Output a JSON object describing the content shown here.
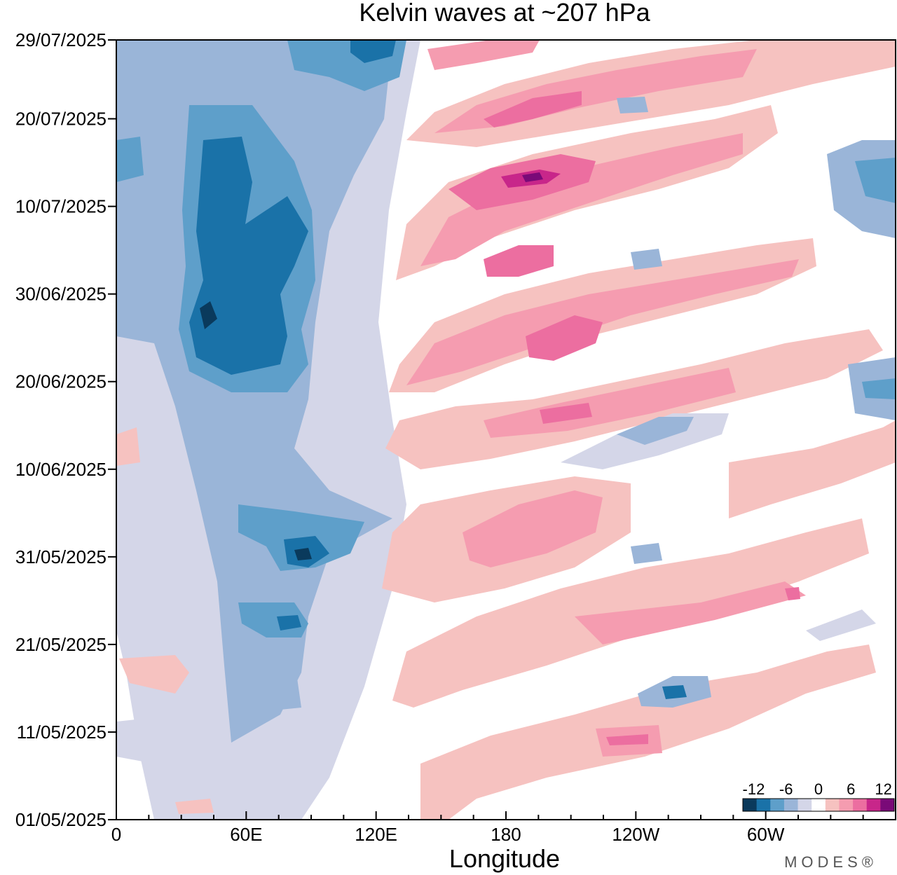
{
  "chart_data": {
    "type": "heatmap",
    "title": "Kelvin waves at ~207 hPa",
    "xlabel": "Longitude",
    "ylabel": "",
    "x_ticks": [
      "0",
      "60E",
      "120E",
      "180",
      "120W",
      "60W"
    ],
    "x_tick_values": [
      0,
      60,
      120,
      180,
      240,
      300
    ],
    "xlim": [
      0,
      360
    ],
    "y_ticks": [
      "29/07/2025",
      "20/07/2025",
      "10/07/2025",
      "30/06/2025",
      "20/06/2025",
      "10/06/2025",
      "31/05/2025",
      "21/05/2025",
      "11/05/2025",
      "01/05/2025"
    ],
    "y_tick_days": [
      89,
      80,
      70,
      60,
      50,
      40,
      30,
      20,
      10,
      0
    ],
    "ylim_days": [
      0,
      89
    ],
    "colorbar": {
      "tick_labels": [
        "-12",
        "-6",
        "0",
        "6",
        "12"
      ],
      "tick_values": [
        -12,
        -6,
        0,
        6,
        12
      ],
      "levels": [
        -14,
        -11,
        -8,
        -5,
        -2,
        2,
        5,
        8,
        11,
        14
      ],
      "colors": [
        "#0a3a5c",
        "#1a72a8",
        "#5e9fca",
        "#9ab5d8",
        "#d4d6e8",
        "#ffffff",
        "#f6c2c0",
        "#f59cb0",
        "#ec6ea0",
        "#c8268a",
        "#7a0a78"
      ]
    },
    "features": [
      {
        "name": "west-indian-ocean-negative",
        "lon": [
          20,
          105
        ],
        "day": [
          0,
          89
        ],
        "value": -6
      },
      {
        "name": "indian-ocean-core-negative",
        "lon": [
          30,
          85
        ],
        "day": [
          45,
          75
        ],
        "value": -11
      },
      {
        "name": "upper-negative-top",
        "lon": [
          80,
          130
        ],
        "day": [
          80,
          89
        ],
        "value": -8
      },
      {
        "name": "negative-cell-31-05",
        "lon": [
          70,
          115
        ],
        "day": [
          28,
          33
        ],
        "value": -10
      },
      {
        "name": "negative-cell-20-05",
        "lon": [
          60,
          95
        ],
        "day": [
          20,
          25
        ],
        "value": -8
      },
      {
        "name": "positive-band-1",
        "lon": [
          140,
          320
        ],
        "day": [
          0,
          20
        ],
        "value": 5
      },
      {
        "name": "positive-band-2",
        "lon": [
          130,
          340
        ],
        "day": [
          20,
          42
        ],
        "value": 6
      },
      {
        "name": "positive-band-3",
        "lon": [
          125,
          350
        ],
        "day": [
          45,
          65
        ],
        "value": 9
      },
      {
        "name": "positive-band-4",
        "lon": [
          140,
          330
        ],
        "day": [
          65,
          89
        ],
        "value": 11
      },
      {
        "name": "east-pacific-negative",
        "lon": [
          320,
          360
        ],
        "day": [
          45,
          75
        ],
        "value": -6
      },
      {
        "name": "negative-cell-120W",
        "lon": [
          240,
          275
        ],
        "day": [
          12,
          17
        ],
        "value": -9
      }
    ]
  },
  "watermark": "MODES®"
}
